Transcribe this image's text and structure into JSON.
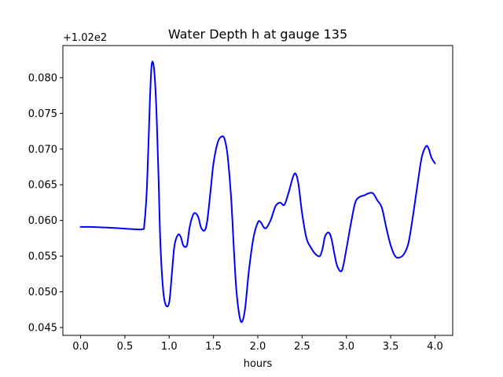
{
  "chart_data": {
    "type": "line",
    "title": "Water Depth h at gauge 135",
    "xlabel": "hours",
    "ylabel": "",
    "y_offset_label": "+1.02e2",
    "y_offset": 102,
    "xlim": [
      -0.2,
      4.2
    ],
    "ylim": [
      0.0439,
      0.0845
    ],
    "xticks": [
      0.0,
      0.5,
      1.0,
      1.5,
      2.0,
      2.5,
      3.0,
      3.5,
      4.0
    ],
    "xtick_labels": [
      "0.0",
      "0.5",
      "1.0",
      "1.5",
      "2.0",
      "2.5",
      "3.0",
      "3.5",
      "4.0"
    ],
    "yticks": [
      0.045,
      0.05,
      0.055,
      0.06,
      0.065,
      0.07,
      0.075,
      0.08
    ],
    "ytick_labels": [
      "0.045",
      "0.050",
      "0.055",
      "0.060",
      "0.065",
      "0.070",
      "0.075",
      "0.080"
    ],
    "grid": false,
    "series": [
      {
        "color": "#0000ff",
        "x": [
          0.0,
          0.1,
          0.2,
          0.3,
          0.4,
          0.5,
          0.6,
          0.7,
          0.72,
          0.75,
          0.78,
          0.8,
          0.82,
          0.84,
          0.86,
          0.88,
          0.9,
          0.93,
          0.96,
          1.0,
          1.03,
          1.06,
          1.1,
          1.13,
          1.16,
          1.2,
          1.23,
          1.27,
          1.3,
          1.33,
          1.36,
          1.4,
          1.43,
          1.47,
          1.5,
          1.55,
          1.6,
          1.63,
          1.66,
          1.7,
          1.73,
          1.76,
          1.8,
          1.83,
          1.86,
          1.9,
          1.95,
          2.0,
          2.03,
          2.07,
          2.1,
          2.15,
          2.2,
          2.25,
          2.3,
          2.35,
          2.4,
          2.43,
          2.46,
          2.5,
          2.55,
          2.6,
          2.65,
          2.7,
          2.73,
          2.76,
          2.8,
          2.83,
          2.87,
          2.9,
          2.95,
          3.0,
          3.05,
          3.1,
          3.15,
          3.2,
          3.25,
          3.3,
          3.35,
          3.4,
          3.45,
          3.5,
          3.55,
          3.6,
          3.65,
          3.7,
          3.75,
          3.8,
          3.85,
          3.9,
          3.93,
          3.96,
          4.0
        ],
        "y": [
          0.0591,
          0.0591,
          0.05905,
          0.059,
          0.05893,
          0.05885,
          0.05878,
          0.05878,
          0.0595,
          0.065,
          0.076,
          0.0815,
          0.082,
          0.0795,
          0.074,
          0.066,
          0.057,
          0.0505,
          0.0482,
          0.0485,
          0.0525,
          0.0565,
          0.058,
          0.0577,
          0.0565,
          0.0565,
          0.059,
          0.0608,
          0.061,
          0.0604,
          0.059,
          0.0586,
          0.06,
          0.0645,
          0.068,
          0.071,
          0.0718,
          0.0712,
          0.069,
          0.063,
          0.056,
          0.05,
          0.0462,
          0.046,
          0.048,
          0.053,
          0.0575,
          0.0597,
          0.0598,
          0.059,
          0.059,
          0.0602,
          0.062,
          0.0625,
          0.0622,
          0.064,
          0.0662,
          0.0665,
          0.065,
          0.061,
          0.0575,
          0.0562,
          0.0553,
          0.055,
          0.056,
          0.0578,
          0.0583,
          0.0575,
          0.055,
          0.0535,
          0.053,
          0.056,
          0.0595,
          0.0625,
          0.0633,
          0.0635,
          0.0638,
          0.0638,
          0.0628,
          0.0618,
          0.059,
          0.0565,
          0.055,
          0.0548,
          0.0553,
          0.0568,
          0.0605,
          0.0648,
          0.0688,
          0.0704,
          0.07,
          0.0688,
          0.068
        ]
      }
    ]
  }
}
